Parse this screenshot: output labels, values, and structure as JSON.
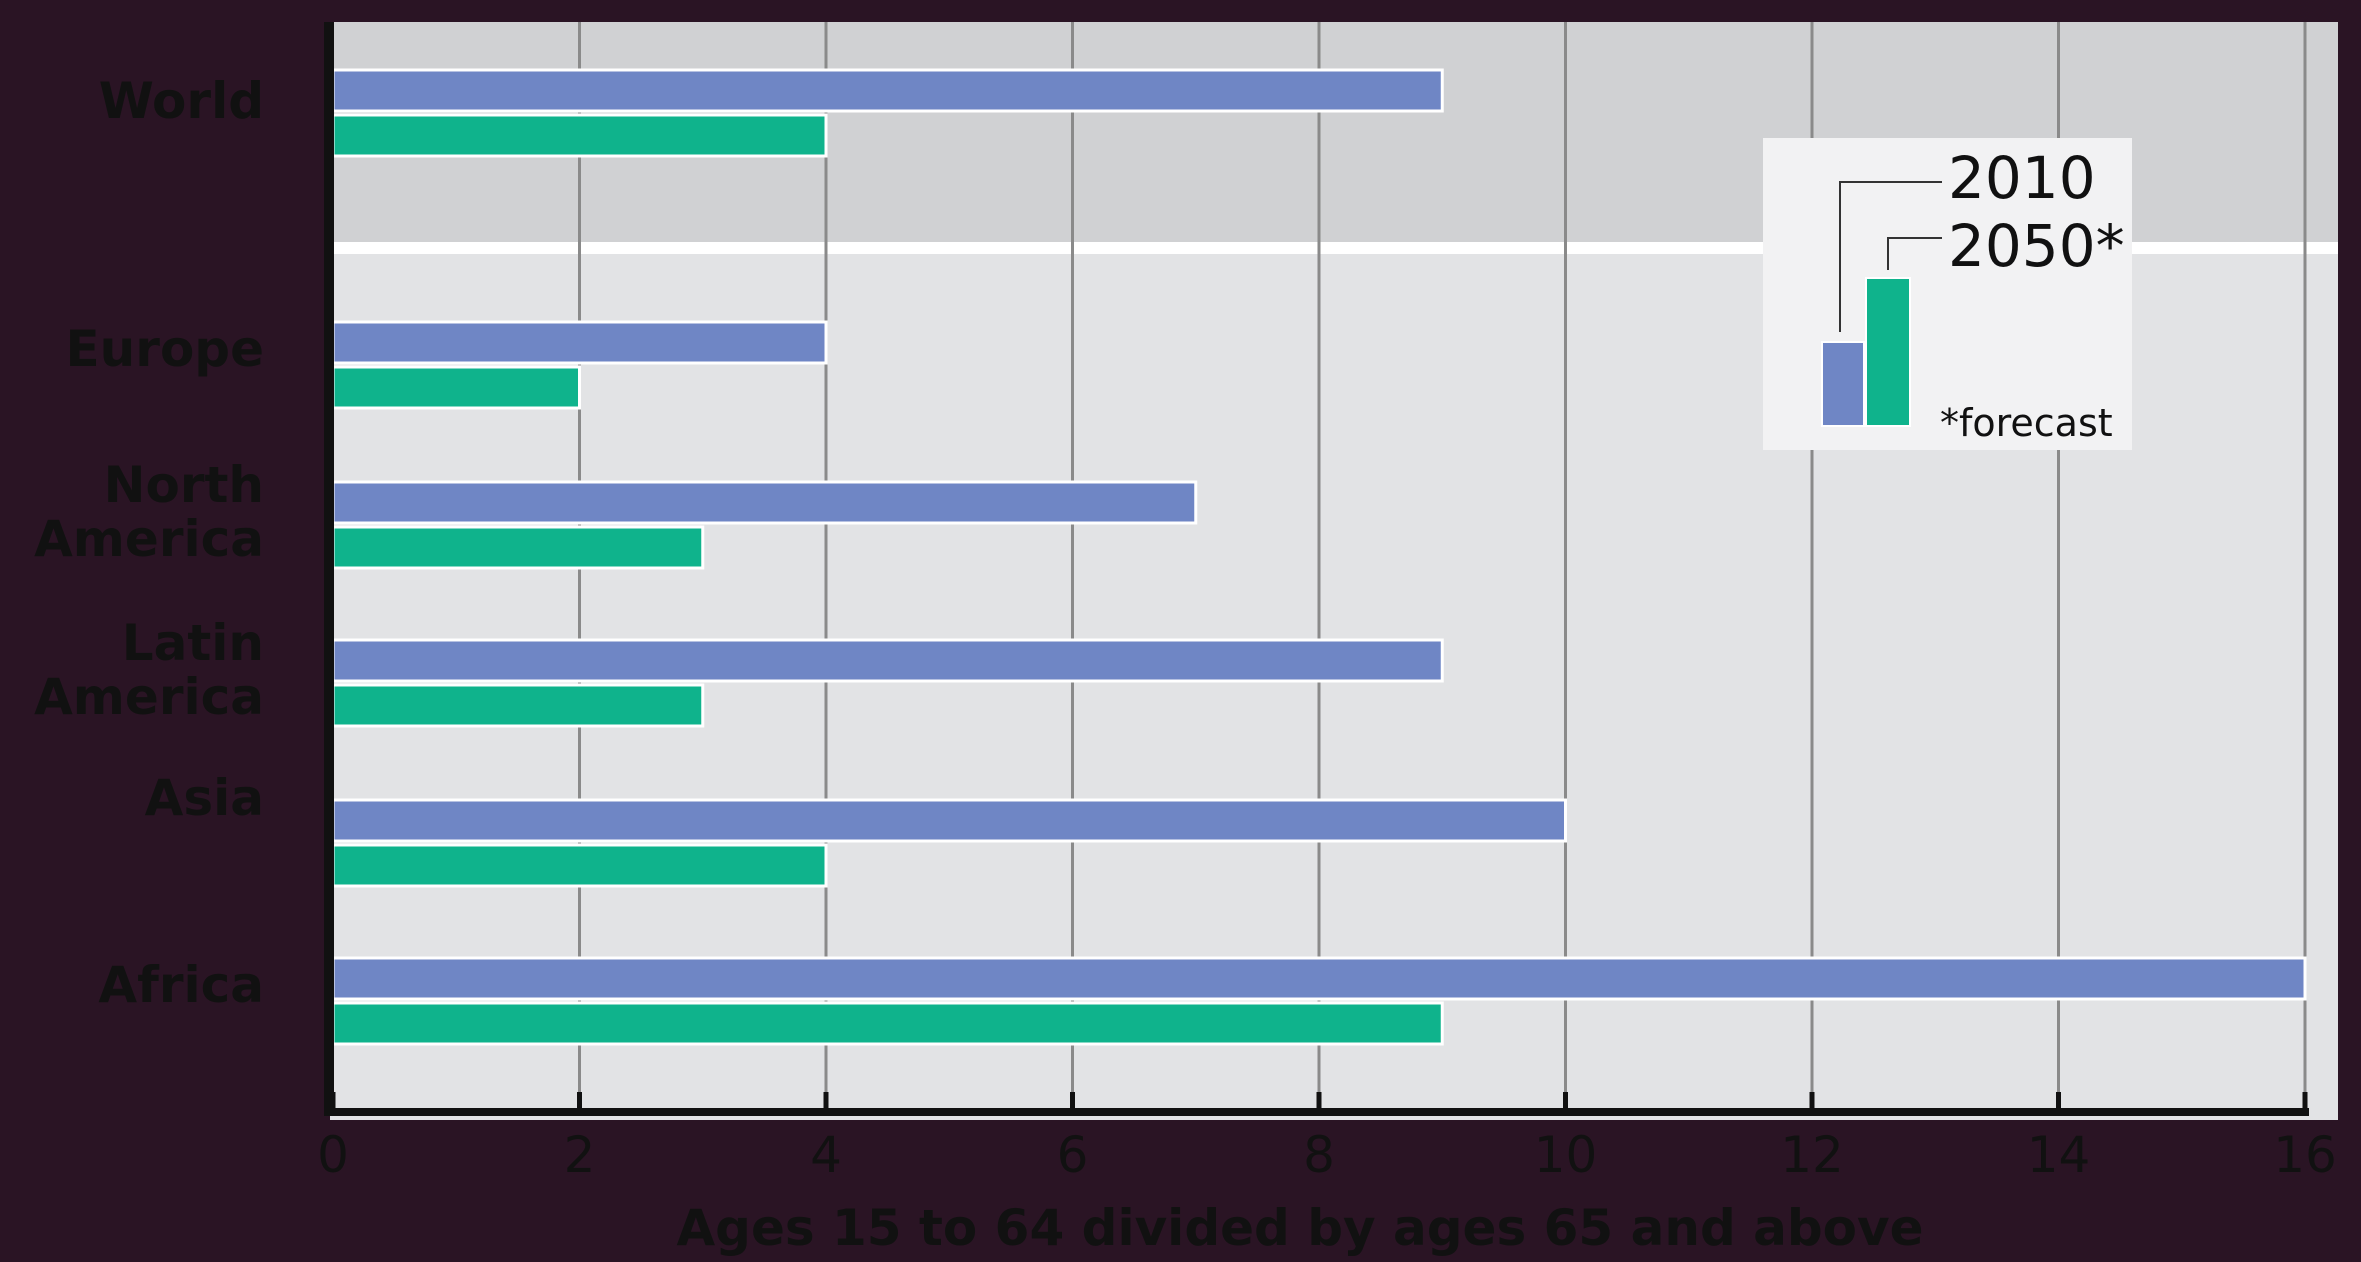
{
  "chart_data": {
    "type": "bar",
    "orientation": "horizontal",
    "categories": [
      "World",
      "Europe",
      "North America",
      "Latin America",
      "Asia",
      "Africa"
    ],
    "category_label_lines": [
      [
        "World"
      ],
      [
        "Europe"
      ],
      [
        "North",
        "America"
      ],
      [
        "Latin",
        "America"
      ],
      [
        "Asia"
      ],
      [
        "Africa"
      ]
    ],
    "series": [
      {
        "name": "2010",
        "color": "#6f86c5",
        "values": [
          9,
          4,
          7,
          9,
          10,
          16
        ]
      },
      {
        "name": "2050*",
        "color": "#0fb38c",
        "values": [
          4,
          2,
          3,
          3,
          4,
          9
        ]
      }
    ],
    "xlabel": "Ages 15 to 64 divided by ages 65 and above",
    "xlim": [
      0,
      16
    ],
    "xticks": [
      0,
      2,
      4,
      6,
      8,
      10,
      12,
      14,
      16
    ],
    "grid": true,
    "legend_position": "top-right",
    "footnote": "*forecast",
    "colors": {
      "frame": "#2a1424",
      "plot_top": "#d0d1d3",
      "plot_bottom": "#e2e3e5",
      "separator": "#ffffff",
      "axis": "#111111",
      "gridline": "#8a8a8a"
    }
  }
}
